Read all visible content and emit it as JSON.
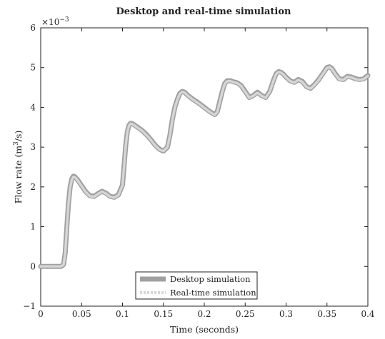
{
  "chart_data": {
    "type": "line",
    "title": "Desktop and real-time simulation",
    "xlabel": "Time (seconds)",
    "ylabel_prefix": "Flow rate (m",
    "ylabel_sup": "3",
    "ylabel_suffix": "/s)",
    "y_multiplier_prefix": "×10",
    "y_multiplier_exp": "−3",
    "xlim": [
      0,
      0.4
    ],
    "ylim": [
      -1,
      6
    ],
    "x_ticks": [
      0,
      0.05,
      0.1,
      0.15,
      0.2,
      0.25,
      0.3,
      0.35,
      0.4
    ],
    "x_tick_labels": [
      "0",
      "0.05",
      "0.1",
      "0.15",
      "0.2",
      "0.25",
      "0.3",
      "0.35",
      "0.4"
    ],
    "y_ticks": [
      -1,
      0,
      1,
      2,
      3,
      4,
      5,
      6
    ],
    "y_tick_labels": [
      "−1",
      "0",
      "1",
      "2",
      "3",
      "4",
      "5",
      "6"
    ],
    "grid": false,
    "legend_position": "bottom-center",
    "series": [
      {
        "name": "Desktop simulation",
        "color": "#a0a0a0",
        "style": "solid",
        "x": [
          0,
          0.005,
          0.01,
          0.015,
          0.02,
          0.025,
          0.028,
          0.03,
          0.032,
          0.034,
          0.036,
          0.038,
          0.04,
          0.042,
          0.045,
          0.05,
          0.055,
          0.06,
          0.065,
          0.07,
          0.075,
          0.08,
          0.085,
          0.09,
          0.095,
          0.1,
          0.102,
          0.104,
          0.106,
          0.108,
          0.11,
          0.113,
          0.117,
          0.12,
          0.125,
          0.13,
          0.135,
          0.14,
          0.145,
          0.15,
          0.155,
          0.158,
          0.161,
          0.164,
          0.167,
          0.17,
          0.173,
          0.176,
          0.18,
          0.185,
          0.19,
          0.195,
          0.2,
          0.205,
          0.21,
          0.213,
          0.216,
          0.219,
          0.222,
          0.225,
          0.228,
          0.232,
          0.236,
          0.24,
          0.245,
          0.25,
          0.255,
          0.26,
          0.265,
          0.27,
          0.275,
          0.28,
          0.285,
          0.288,
          0.291,
          0.294,
          0.297,
          0.3,
          0.305,
          0.31,
          0.315,
          0.32,
          0.325,
          0.33,
          0.335,
          0.34,
          0.345,
          0.35,
          0.353,
          0.356,
          0.36,
          0.365,
          0.37,
          0.375,
          0.38,
          0.385,
          0.39,
          0.395,
          0.4
        ],
        "y": [
          0,
          0,
          0,
          0,
          0,
          0,
          0.05,
          0.35,
          1.0,
          1.6,
          2.0,
          2.2,
          2.27,
          2.25,
          2.18,
          2.03,
          1.88,
          1.78,
          1.76,
          1.83,
          1.89,
          1.84,
          1.76,
          1.74,
          1.8,
          2.05,
          2.55,
          3.05,
          3.4,
          3.55,
          3.6,
          3.58,
          3.52,
          3.48,
          3.4,
          3.3,
          3.18,
          3.05,
          2.95,
          2.9,
          3.0,
          3.3,
          3.7,
          4.0,
          4.2,
          4.35,
          4.4,
          4.38,
          4.3,
          4.22,
          4.15,
          4.08,
          4.0,
          3.92,
          3.85,
          3.82,
          3.9,
          4.15,
          4.4,
          4.6,
          4.67,
          4.67,
          4.64,
          4.62,
          4.55,
          4.4,
          4.25,
          4.3,
          4.38,
          4.3,
          4.25,
          4.4,
          4.7,
          4.85,
          4.9,
          4.88,
          4.83,
          4.76,
          4.67,
          4.63,
          4.7,
          4.65,
          4.52,
          4.48,
          4.58,
          4.7,
          4.85,
          5.0,
          5.02,
          4.98,
          4.85,
          4.72,
          4.7,
          4.78,
          4.76,
          4.72,
          4.7,
          4.72,
          4.8
        ]
      },
      {
        "name": "Real-time simulation",
        "color": "#d6d6d6",
        "style": "dashed",
        "x": [
          0,
          0.005,
          0.01,
          0.015,
          0.02,
          0.025,
          0.028,
          0.03,
          0.032,
          0.034,
          0.036,
          0.038,
          0.04,
          0.042,
          0.045,
          0.05,
          0.055,
          0.06,
          0.065,
          0.07,
          0.075,
          0.08,
          0.085,
          0.09,
          0.095,
          0.1,
          0.102,
          0.104,
          0.106,
          0.108,
          0.11,
          0.113,
          0.117,
          0.12,
          0.125,
          0.13,
          0.135,
          0.14,
          0.145,
          0.15,
          0.155,
          0.158,
          0.161,
          0.164,
          0.167,
          0.17,
          0.173,
          0.176,
          0.18,
          0.185,
          0.19,
          0.195,
          0.2,
          0.205,
          0.21,
          0.213,
          0.216,
          0.219,
          0.222,
          0.225,
          0.228,
          0.232,
          0.236,
          0.24,
          0.245,
          0.25,
          0.255,
          0.26,
          0.265,
          0.27,
          0.275,
          0.28,
          0.285,
          0.288,
          0.291,
          0.294,
          0.297,
          0.3,
          0.305,
          0.31,
          0.315,
          0.32,
          0.325,
          0.33,
          0.335,
          0.34,
          0.345,
          0.35,
          0.353,
          0.356,
          0.36,
          0.365,
          0.37,
          0.375,
          0.38,
          0.385,
          0.39,
          0.395,
          0.4
        ],
        "y": [
          0,
          0,
          0,
          0,
          0,
          0,
          0.05,
          0.33,
          0.98,
          1.58,
          1.98,
          2.18,
          2.25,
          2.24,
          2.17,
          2.02,
          1.87,
          1.77,
          1.75,
          1.82,
          1.88,
          1.83,
          1.75,
          1.73,
          1.79,
          2.04,
          2.54,
          3.04,
          3.39,
          3.54,
          3.59,
          3.57,
          3.51,
          3.47,
          3.39,
          3.29,
          3.17,
          3.04,
          2.94,
          2.9,
          3.0,
          3.29,
          3.69,
          3.99,
          4.19,
          4.34,
          4.39,
          4.37,
          4.29,
          4.21,
          4.14,
          4.07,
          3.99,
          3.91,
          3.84,
          3.81,
          3.89,
          4.14,
          4.39,
          4.59,
          4.66,
          4.66,
          4.63,
          4.61,
          4.54,
          4.39,
          4.24,
          4.29,
          4.37,
          4.29,
          4.24,
          4.39,
          4.69,
          4.84,
          4.89,
          4.87,
          4.82,
          4.75,
          4.66,
          4.62,
          4.69,
          4.64,
          4.51,
          4.47,
          4.57,
          4.69,
          4.84,
          4.99,
          5.01,
          4.97,
          4.84,
          4.71,
          4.69,
          4.77,
          4.75,
          4.71,
          4.69,
          4.71,
          4.79
        ]
      }
    ]
  }
}
